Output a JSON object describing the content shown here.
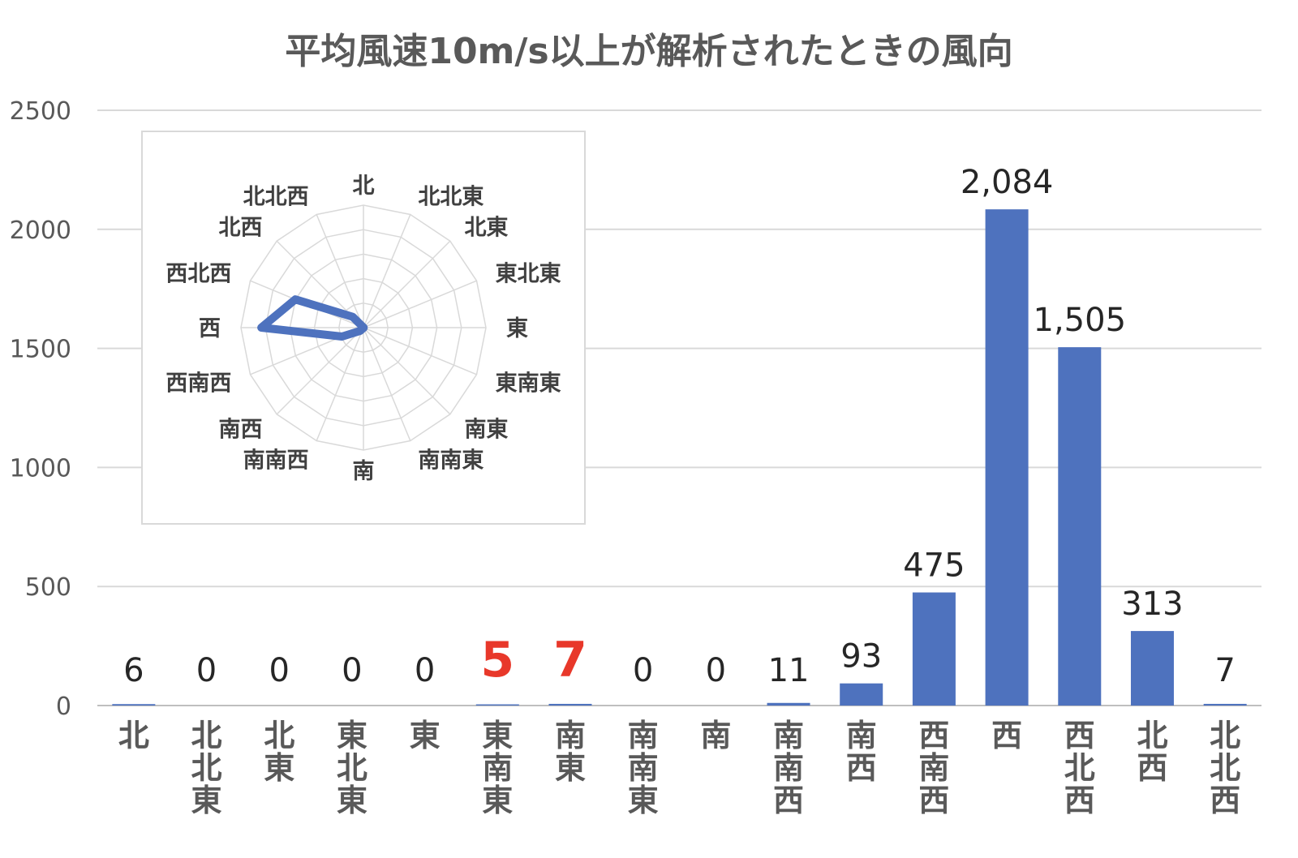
{
  "chart_data": {
    "type": "bar",
    "title": "平均風速10m/s以上が解析されたときの風向",
    "categories": [
      "北",
      "北北東",
      "北東",
      "東北東",
      "東",
      "東南東",
      "南東",
      "南南東",
      "南",
      "南南西",
      "南西",
      "西南西",
      "西",
      "西北西",
      "北西",
      "北北西"
    ],
    "values": [
      6,
      0,
      0,
      0,
      0,
      5,
      7,
      0,
      0,
      11,
      93,
      475,
      2084,
      1505,
      313,
      7
    ],
    "data_labels": [
      "6",
      "0",
      "0",
      "0",
      "0",
      "5",
      "7",
      "0",
      "0",
      "11",
      "93",
      "475",
      "2,084",
      "1,505",
      "313",
      "7"
    ],
    "highlighted_labels": [
      "東南東",
      "南東"
    ],
    "highlight_color": "#e8382a",
    "bar_color": "#4e72be",
    "y_ticks": [
      0,
      500,
      1000,
      1500,
      2000,
      2500
    ],
    "y_tick_labels": [
      "0",
      "500",
      "1000",
      "1500",
      "2000",
      "2500"
    ],
    "ylim": [
      0,
      2500
    ],
    "xlabel": "",
    "ylabel": "",
    "grid": true,
    "legend": "none",
    "inset": {
      "type": "radar",
      "categories": [
        "北",
        "北北東",
        "北東",
        "東北東",
        "東",
        "東南東",
        "南東",
        "南南東",
        "南",
        "南南西",
        "南西",
        "西南西",
        "西",
        "西北西",
        "北西",
        "北北西"
      ],
      "values": [
        6,
        0,
        0,
        0,
        0,
        5,
        7,
        0,
        0,
        11,
        93,
        475,
        2084,
        1505,
        313,
        7
      ],
      "rmax": 2500,
      "rings": 5,
      "series_color": "#4e72be"
    }
  }
}
